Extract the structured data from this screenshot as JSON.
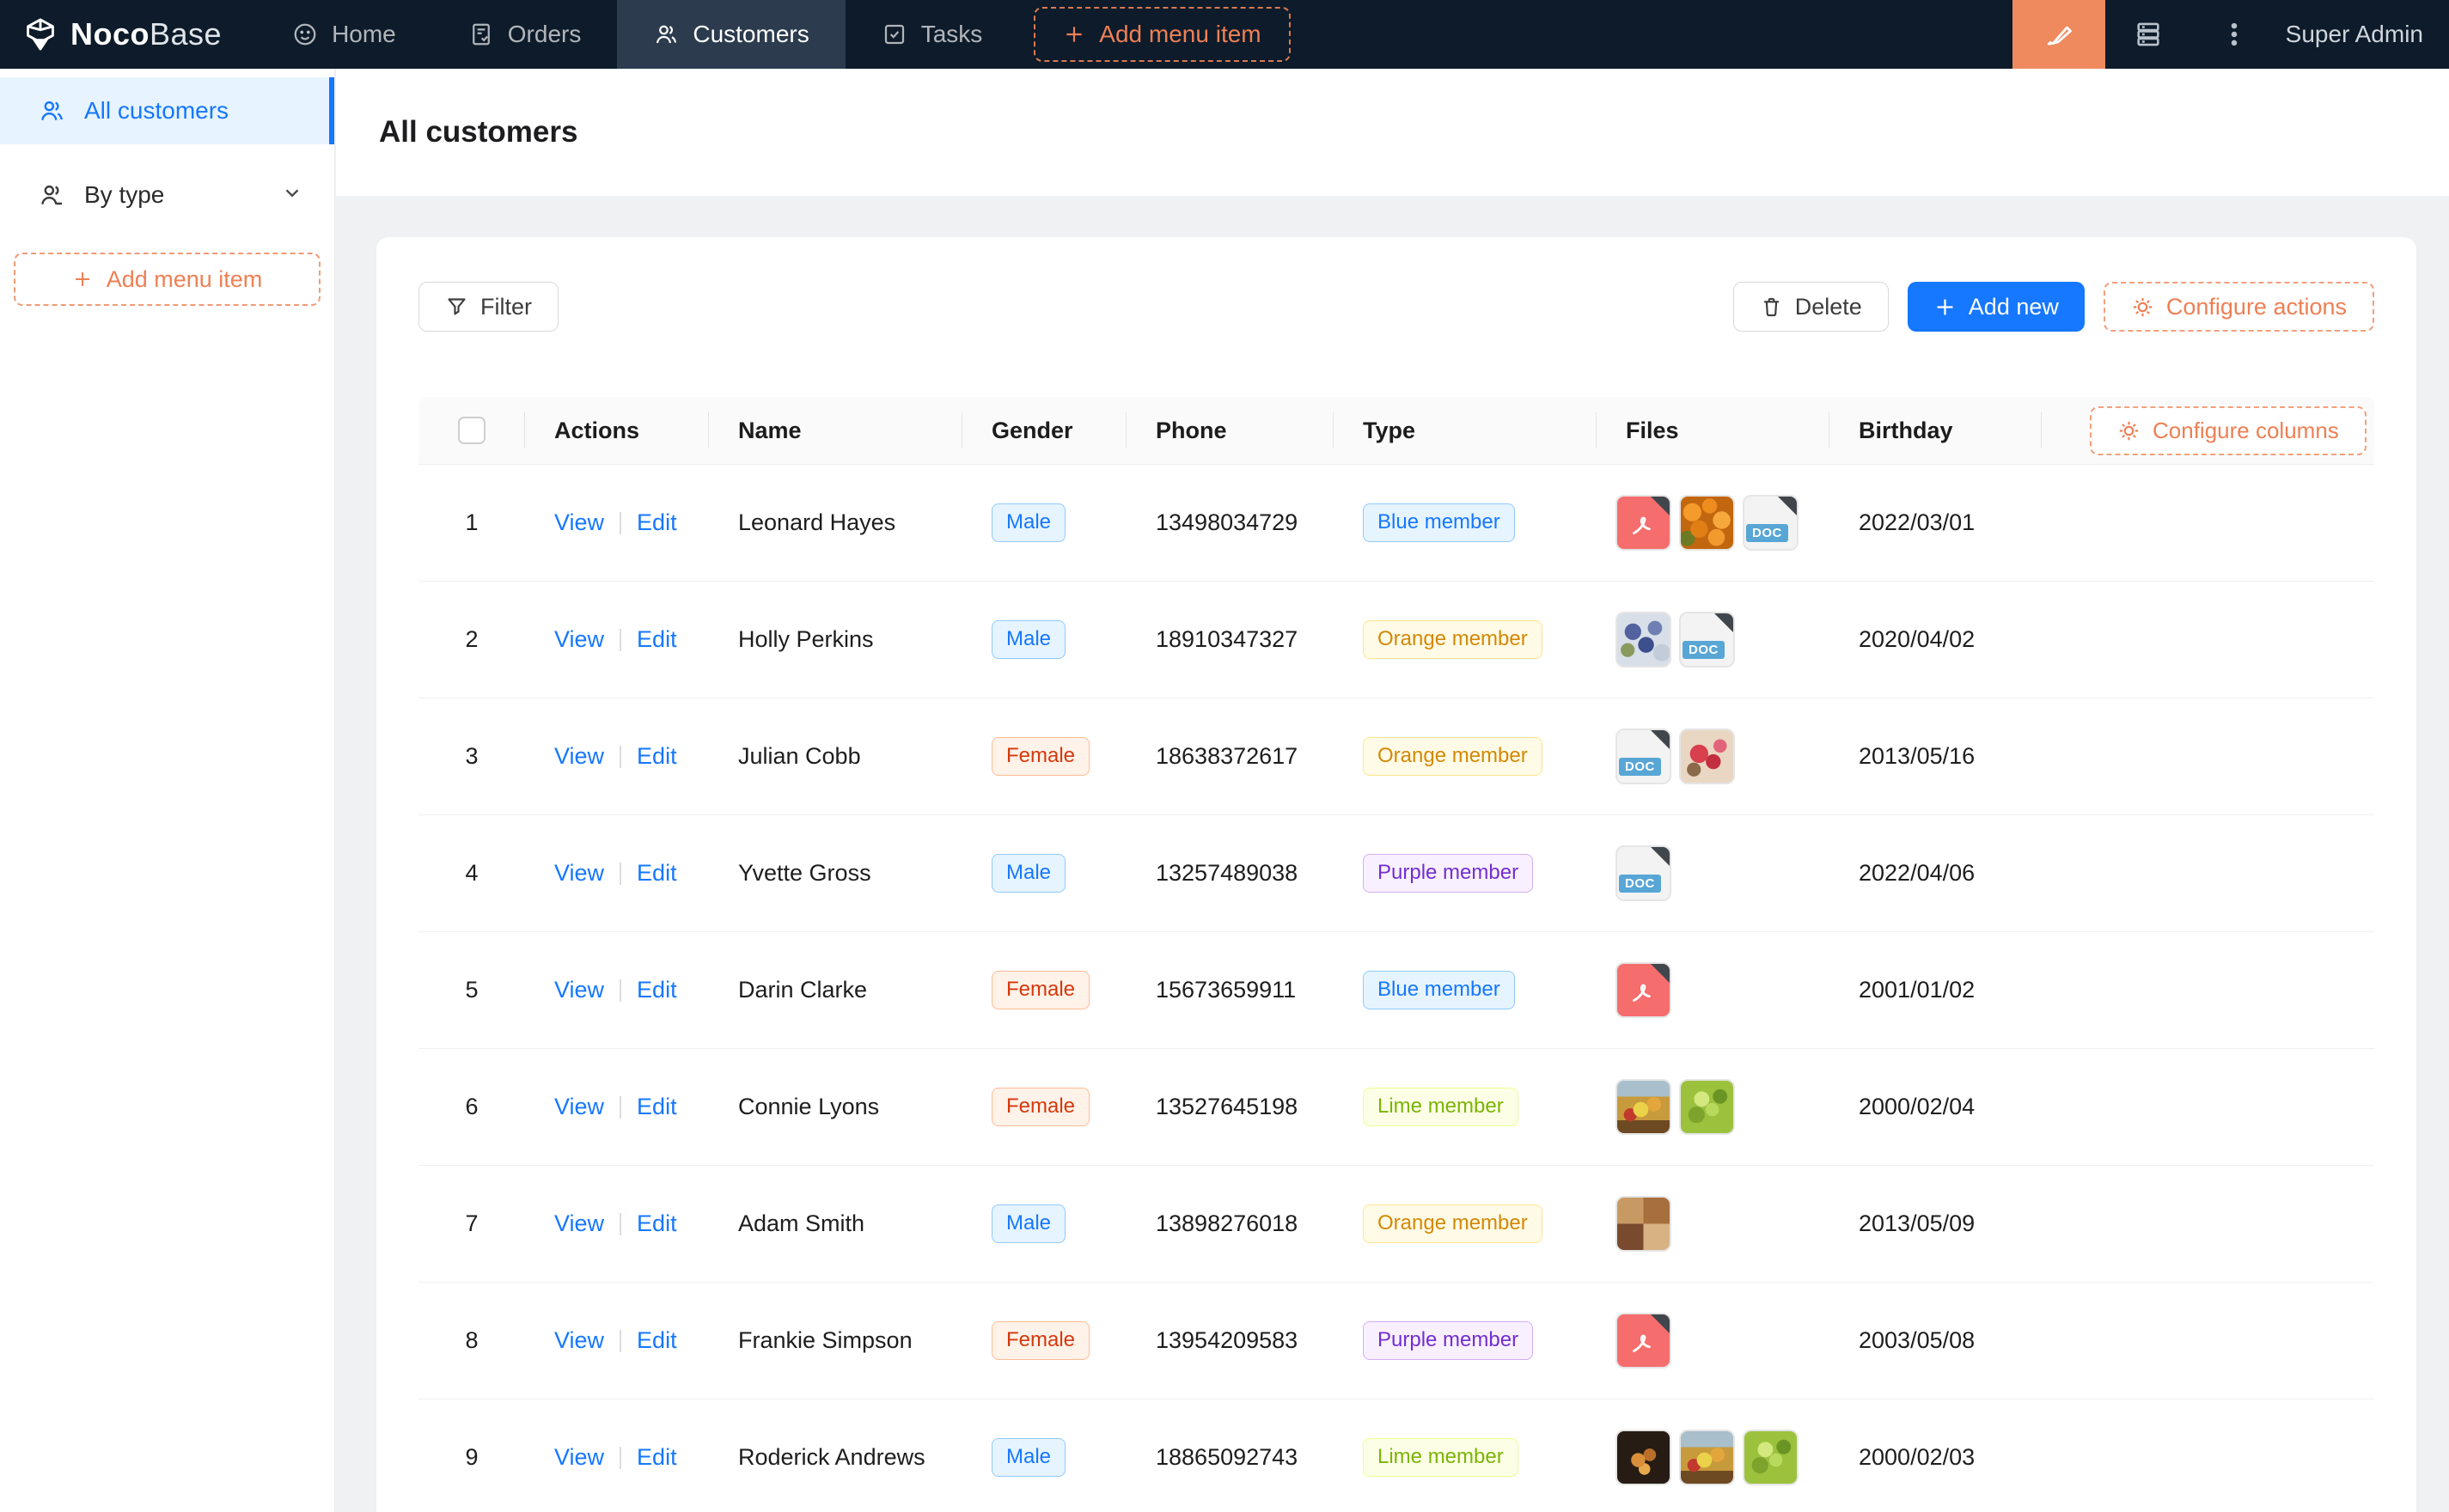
{
  "brand": {
    "bold": "Noco",
    "light": "Base"
  },
  "nav": {
    "items": [
      {
        "label": "Home"
      },
      {
        "label": "Orders"
      },
      {
        "label": "Customers",
        "active": true
      },
      {
        "label": "Tasks"
      }
    ],
    "add_menu_item": "Add menu item",
    "user": "Super Admin"
  },
  "sidebar": {
    "items": [
      {
        "label": "All customers",
        "active": true
      },
      {
        "label": "By type"
      }
    ],
    "add_menu_item": "Add menu item"
  },
  "page": {
    "title": "All customers"
  },
  "toolbar": {
    "filter": "Filter",
    "delete": "Delete",
    "add_new": "Add new",
    "configure_actions": "Configure actions"
  },
  "table": {
    "configure_columns": "Configure columns",
    "columns": [
      "Actions",
      "Name",
      "Gender",
      "Phone",
      "Type",
      "Files",
      "Birthday"
    ],
    "action_labels": {
      "view": "View",
      "edit": "Edit"
    },
    "doc_badge": "DOC",
    "rows": [
      {
        "index": 1,
        "name": "Leonard Hayes",
        "gender": "Male",
        "gender_color": "blue",
        "phone": "13498034729",
        "type": "Blue member",
        "type_color": "blue",
        "files": [
          "pdf",
          "img-berries",
          "doc"
        ],
        "birthday": "2022/03/01"
      },
      {
        "index": 2,
        "name": "Holly Perkins",
        "gender": "Male",
        "gender_color": "blue",
        "phone": "18910347327",
        "type": "Orange member",
        "type_color": "gold",
        "files": [
          "img-bluegrapes",
          "doc"
        ],
        "birthday": "2020/04/02"
      },
      {
        "index": 3,
        "name": "Julian Cobb",
        "gender": "Female",
        "gender_color": "volcano",
        "phone": "18638372617",
        "type": "Orange member",
        "type_color": "gold",
        "files": [
          "doc",
          "img-redplate"
        ],
        "birthday": "2013/05/16"
      },
      {
        "index": 4,
        "name": "Yvette Gross",
        "gender": "Male",
        "gender_color": "blue",
        "phone": "13257489038",
        "type": "Purple member",
        "type_color": "purple",
        "files": [
          "doc"
        ],
        "birthday": "2022/04/06"
      },
      {
        "index": 5,
        "name": "Darin Clarke",
        "gender": "Female",
        "gender_color": "volcano",
        "phone": "15673659911",
        "type": "Blue member",
        "type_color": "blue",
        "files": [
          "pdf"
        ],
        "birthday": "2001/01/02"
      },
      {
        "index": 6,
        "name": "Connie Lyons",
        "gender": "Female",
        "gender_color": "volcano",
        "phone": "13527645198",
        "type": "Lime member",
        "type_color": "lime",
        "files": [
          "img-fruit",
          "img-grapes"
        ],
        "birthday": "2000/02/04"
      },
      {
        "index": 7,
        "name": "Adam Smith",
        "gender": "Male",
        "gender_color": "blue",
        "phone": "13898276018",
        "type": "Orange member",
        "type_color": "gold",
        "files": [
          "img-collage"
        ],
        "birthday": "2013/05/09"
      },
      {
        "index": 8,
        "name": "Frankie Simpson",
        "gender": "Female",
        "gender_color": "volcano",
        "phone": "13954209583",
        "type": "Purple member",
        "type_color": "purple",
        "files": [
          "pdf"
        ],
        "birthday": "2003/05/08"
      },
      {
        "index": 9,
        "name": "Roderick Andrews",
        "gender": "Male",
        "gender_color": "blue",
        "phone": "18865092743",
        "type": "Lime member",
        "type_color": "lime",
        "files": [
          "img-darkfruit",
          "img-fruit",
          "img-grapes"
        ],
        "birthday": "2000/02/03"
      }
    ]
  },
  "colors": {
    "nav_bg": "#0d1b2a",
    "accent_orange": "#ee8055",
    "primary_blue": "#1677ff",
    "sidebar_selected_bg": "#e7f4ff"
  }
}
